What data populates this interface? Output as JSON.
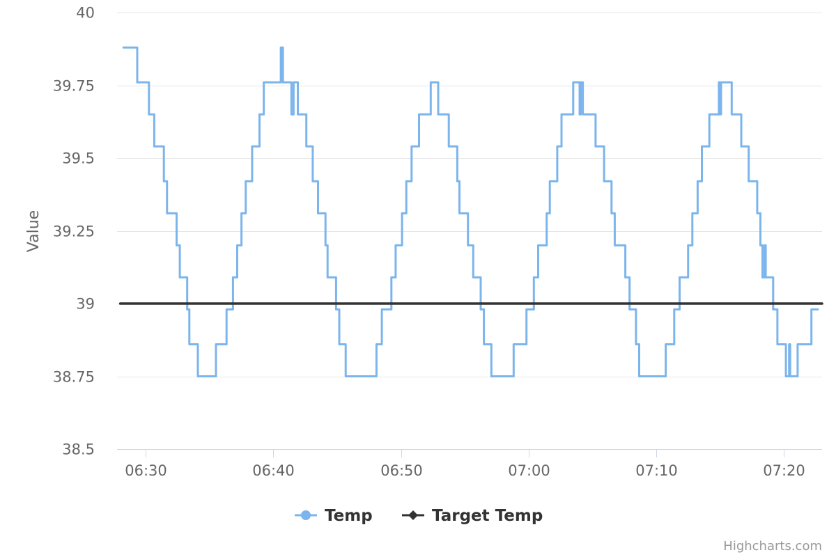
{
  "chart_data": {
    "type": "line",
    "step": true,
    "yaxis_title": "Value",
    "ylim": [
      38.5,
      40
    ],
    "y_ticks": [
      {
        "value": 38.5,
        "label": "38.5"
      },
      {
        "value": 38.75,
        "label": "38.75"
      },
      {
        "value": 39,
        "label": "39"
      },
      {
        "value": 39.25,
        "label": "39.25"
      },
      {
        "value": 39.5,
        "label": "39.5"
      },
      {
        "value": 39.75,
        "label": "39.75"
      },
      {
        "value": 40,
        "label": "40"
      }
    ],
    "xlim": [
      "06:27:45",
      "07:23:00"
    ],
    "x_ticks": [
      {
        "value": "06:30",
        "label": "06:30"
      },
      {
        "value": "06:40",
        "label": "06:40"
      },
      {
        "value": "06:50",
        "label": "06:50"
      },
      {
        "value": "07:00",
        "label": "07:00"
      },
      {
        "value": "07:10",
        "label": "07:10"
      },
      {
        "value": "07:20",
        "label": "07:20"
      }
    ],
    "grid": true,
    "legend_position": "bottom-center",
    "series": [
      {
        "name": "Temp",
        "color": "#7cb5ec",
        "marker": "circle",
        "points": [
          [
            "06:28:15",
            39.88
          ],
          [
            "06:29:20",
            39.76
          ],
          [
            "06:30:15",
            39.65
          ],
          [
            "06:30:40",
            39.54
          ],
          [
            "06:31:25",
            39.42
          ],
          [
            "06:31:40",
            39.31
          ],
          [
            "06:32:25",
            39.2
          ],
          [
            "06:32:40",
            39.09
          ],
          [
            "06:33:15",
            38.98
          ],
          [
            "06:33:25",
            38.86
          ],
          [
            "06:34:05",
            38.75
          ],
          [
            "06:35:30",
            38.86
          ],
          [
            "06:36:20",
            38.98
          ],
          [
            "06:36:50",
            39.09
          ],
          [
            "06:37:10",
            39.2
          ],
          [
            "06:37:30",
            39.31
          ],
          [
            "06:37:50",
            39.42
          ],
          [
            "06:38:20",
            39.54
          ],
          [
            "06:38:55",
            39.65
          ],
          [
            "06:39:15",
            39.76
          ],
          [
            "06:40:35",
            39.88
          ],
          [
            "06:40:45",
            39.76
          ],
          [
            "06:41:25",
            39.65
          ],
          [
            "06:41:35",
            39.76
          ],
          [
            "06:41:55",
            39.65
          ],
          [
            "06:42:35",
            39.54
          ],
          [
            "06:43:05",
            39.42
          ],
          [
            "06:43:30",
            39.31
          ],
          [
            "06:44:05",
            39.2
          ],
          [
            "06:44:15",
            39.09
          ],
          [
            "06:44:55",
            38.98
          ],
          [
            "06:45:10",
            38.86
          ],
          [
            "06:45:40",
            38.75
          ],
          [
            "06:48:05",
            38.86
          ],
          [
            "06:48:30",
            38.98
          ],
          [
            "06:49:15",
            39.09
          ],
          [
            "06:49:35",
            39.2
          ],
          [
            "06:50:05",
            39.31
          ],
          [
            "06:50:25",
            39.42
          ],
          [
            "06:50:50",
            39.54
          ],
          [
            "06:51:25",
            39.65
          ],
          [
            "06:52:20",
            39.76
          ],
          [
            "06:52:55",
            39.65
          ],
          [
            "06:53:45",
            39.54
          ],
          [
            "06:54:25",
            39.42
          ],
          [
            "06:54:35",
            39.31
          ],
          [
            "06:55:15",
            39.2
          ],
          [
            "06:55:40",
            39.09
          ],
          [
            "06:56:15",
            38.98
          ],
          [
            "06:56:30",
            38.86
          ],
          [
            "06:57:05",
            38.75
          ],
          [
            "06:58:50",
            38.86
          ],
          [
            "06:59:50",
            38.98
          ],
          [
            "07:00:25",
            39.09
          ],
          [
            "07:00:45",
            39.2
          ],
          [
            "07:01:25",
            39.31
          ],
          [
            "07:01:40",
            39.42
          ],
          [
            "07:02:15",
            39.54
          ],
          [
            "07:02:35",
            39.65
          ],
          [
            "07:03:30",
            39.76
          ],
          [
            "07:04:00",
            39.65
          ],
          [
            "07:04:05",
            39.76
          ],
          [
            "07:04:15",
            39.65
          ],
          [
            "07:05:15",
            39.54
          ],
          [
            "07:05:55",
            39.42
          ],
          [
            "07:06:30",
            39.31
          ],
          [
            "07:06:45",
            39.2
          ],
          [
            "07:07:35",
            39.09
          ],
          [
            "07:07:55",
            38.98
          ],
          [
            "07:08:25",
            38.86
          ],
          [
            "07:08:40",
            38.75
          ],
          [
            "07:10:45",
            38.86
          ],
          [
            "07:11:25",
            38.98
          ],
          [
            "07:11:50",
            39.09
          ],
          [
            "07:12:30",
            39.2
          ],
          [
            "07:12:50",
            39.31
          ],
          [
            "07:13:15",
            39.42
          ],
          [
            "07:13:35",
            39.54
          ],
          [
            "07:14:10",
            39.65
          ],
          [
            "07:14:55",
            39.76
          ],
          [
            "07:15:00",
            39.65
          ],
          [
            "07:15:05",
            39.76
          ],
          [
            "07:15:55",
            39.65
          ],
          [
            "07:16:40",
            39.54
          ],
          [
            "07:17:15",
            39.42
          ],
          [
            "07:17:55",
            39.31
          ],
          [
            "07:18:10",
            39.2
          ],
          [
            "07:18:20",
            39.09
          ],
          [
            "07:18:30",
            39.2
          ],
          [
            "07:18:35",
            39.09
          ],
          [
            "07:19:10",
            38.98
          ],
          [
            "07:19:30",
            38.86
          ],
          [
            "07:20:10",
            38.75
          ],
          [
            "07:20:25",
            38.86
          ],
          [
            "07:20:30",
            38.75
          ],
          [
            "07:21:05",
            38.86
          ],
          [
            "07:22:10",
            38.98
          ],
          [
            "07:22:40",
            38.98
          ]
        ]
      },
      {
        "name": "Target Temp",
        "color": "#333333",
        "marker": "diamond",
        "points": [
          [
            "06:28:00",
            39.0
          ],
          [
            "07:23:00",
            39.0
          ]
        ]
      }
    ]
  },
  "credits": "Highcharts.com"
}
